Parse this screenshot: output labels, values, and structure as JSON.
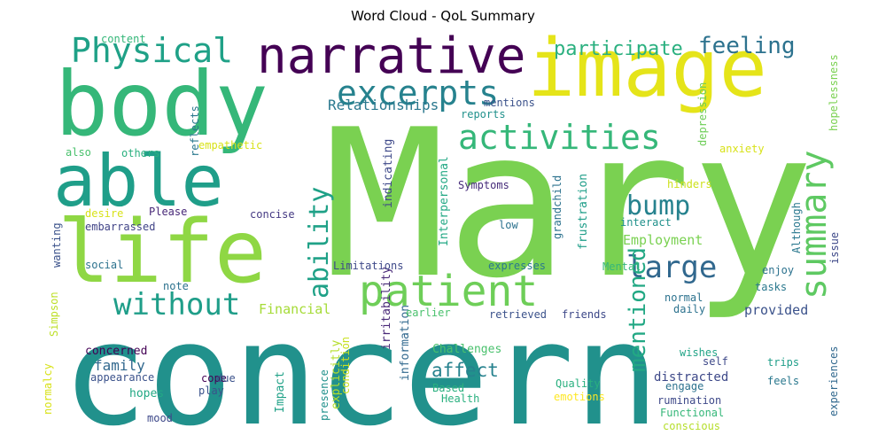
{
  "chart_data": {
    "type": "wordcloud",
    "title": "Word Cloud - QoL Summary",
    "palette": "viridis",
    "words": [
      {
        "text": "Mary",
        "color": "#7ad151"
      },
      {
        "text": "concern",
        "color": "#21918c"
      },
      {
        "text": "body",
        "color": "#35b779"
      },
      {
        "text": "image",
        "color": "#e5e419"
      },
      {
        "text": "life",
        "color": "#8fd744"
      },
      {
        "text": "able",
        "color": "#1f9e89"
      },
      {
        "text": "narrative",
        "color": "#440154"
      },
      {
        "text": "patient",
        "color": "#6ece58"
      },
      {
        "text": "Physical",
        "color": "#1fa187"
      },
      {
        "text": "excerpts",
        "color": "#26828e"
      },
      {
        "text": "activities",
        "color": "#35b779"
      },
      {
        "text": "summary",
        "color": "#5ec962"
      },
      {
        "text": "large",
        "color": "#31688e"
      },
      {
        "text": "without",
        "color": "#1f9e89"
      },
      {
        "text": "ability",
        "color": "#1fa187"
      },
      {
        "text": "bump",
        "color": "#26828e"
      },
      {
        "text": "mentioned",
        "color": "#22a884"
      },
      {
        "text": "feeling",
        "color": "#2c728e"
      },
      {
        "text": "participate",
        "color": "#2ab07f"
      },
      {
        "text": "Relationships",
        "color": "#2a788e"
      },
      {
        "text": "Employment",
        "color": "#7ad151"
      },
      {
        "text": "Financial",
        "color": "#a5db36"
      },
      {
        "text": "affect",
        "color": "#26828e"
      },
      {
        "text": "family",
        "color": "#31688e"
      },
      {
        "text": "provided",
        "color": "#3b528b"
      },
      {
        "text": "concerned",
        "color": "#440154"
      },
      {
        "text": "Challenges",
        "color": "#4ac16d"
      },
      {
        "text": "distracted",
        "color": "#3e4989"
      },
      {
        "text": "hopes",
        "color": "#22a884"
      },
      {
        "text": "Symptoms",
        "color": "#472d7b"
      },
      {
        "text": "frustration",
        "color": "#1f9e89"
      },
      {
        "text": "depression",
        "color": "#6ece58"
      },
      {
        "text": "hopelessness",
        "color": "#7ad151"
      },
      {
        "text": "grandchild",
        "color": "#2c728e"
      },
      {
        "text": "Interpersonal",
        "color": "#22a884"
      },
      {
        "text": "indicating",
        "color": "#3e4989"
      },
      {
        "text": "irritability",
        "color": "#482878"
      },
      {
        "text": "information",
        "color": "#31688e"
      },
      {
        "text": "explicitly",
        "color": "#b5de2b"
      },
      {
        "text": "presence",
        "color": "#21918c"
      },
      {
        "text": "condition",
        "color": "#c8e020"
      },
      {
        "text": "Impact",
        "color": "#1fa187"
      },
      {
        "text": "normalcy",
        "color": "#d8e219"
      },
      {
        "text": "Simpson",
        "color": "#bddf26"
      },
      {
        "text": "content",
        "color": "#35b779"
      },
      {
        "text": "reports",
        "color": "#21918c"
      },
      {
        "text": "mentions",
        "color": "#3b528b"
      },
      {
        "text": "reflects",
        "color": "#2a788e"
      },
      {
        "text": "empathetic",
        "color": "#d8e219"
      },
      {
        "text": "also",
        "color": "#4ac16d"
      },
      {
        "text": "others",
        "color": "#2ab07f"
      },
      {
        "text": "anxiety",
        "color": "#d8e219"
      },
      {
        "text": "hinders",
        "color": "#cde11d"
      },
      {
        "text": "interact",
        "color": "#21918c"
      },
      {
        "text": "desire",
        "color": "#d8e219"
      },
      {
        "text": "Please",
        "color": "#482878"
      },
      {
        "text": "embarrassed",
        "color": "#414487"
      },
      {
        "text": "concise",
        "color": "#443983"
      },
      {
        "text": "low",
        "color": "#2c728e"
      },
      {
        "text": "wanting",
        "color": "#3b528b"
      },
      {
        "text": "social",
        "color": "#2c728e"
      },
      {
        "text": "note",
        "color": "#2c728e"
      },
      {
        "text": "Limitations",
        "color": "#3e4989"
      },
      {
        "text": "expresses",
        "color": "#2a788e"
      },
      {
        "text": "Mental",
        "color": "#35b779"
      },
      {
        "text": "enjoy",
        "color": "#2c728e"
      },
      {
        "text": "tasks",
        "color": "#2a788e"
      },
      {
        "text": "issue",
        "color": "#3e4989"
      },
      {
        "text": "Although",
        "color": "#2a788e"
      },
      {
        "text": "normal",
        "color": "#2c728e"
      },
      {
        "text": "daily",
        "color": "#2c728e"
      },
      {
        "text": "earlier",
        "color": "#4ac16d"
      },
      {
        "text": "retrieved",
        "color": "#3b528b"
      },
      {
        "text": "friends",
        "color": "#3e4989"
      },
      {
        "text": "wishes",
        "color": "#20a486"
      },
      {
        "text": "self",
        "color": "#3e4989"
      },
      {
        "text": "trips",
        "color": "#1f9e89"
      },
      {
        "text": "feels",
        "color": "#2a788e"
      },
      {
        "text": "experiences",
        "color": "#31688e"
      },
      {
        "text": "cope",
        "color": "#440154"
      },
      {
        "text": "appearance",
        "color": "#3b528b"
      },
      {
        "text": "due",
        "color": "#3b528b"
      },
      {
        "text": "play",
        "color": "#3b528b"
      },
      {
        "text": "Based",
        "color": "#2ab07f"
      },
      {
        "text": "Health",
        "color": "#2ab07f"
      },
      {
        "text": "Quality",
        "color": "#2ab07f"
      },
      {
        "text": "emotions",
        "color": "#fde725"
      },
      {
        "text": "engage",
        "color": "#2c728e"
      },
      {
        "text": "rumination",
        "color": "#3e4989"
      },
      {
        "text": "Functional",
        "color": "#35b779"
      },
      {
        "text": "conscious",
        "color": "#b5de2b"
      },
      {
        "text": "mood",
        "color": "#3e4989"
      }
    ]
  }
}
